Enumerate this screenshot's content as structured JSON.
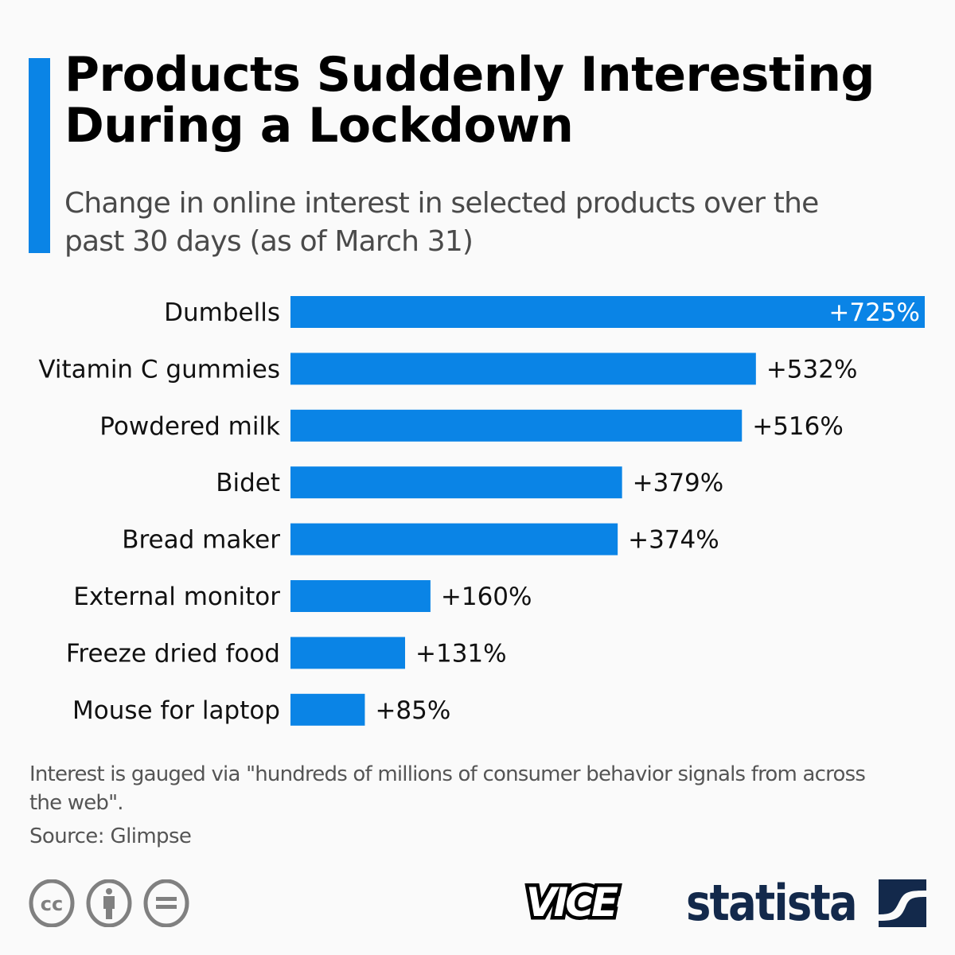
{
  "header": {
    "title": "Products Suddenly Interesting During a Lockdown",
    "subtitle": "Change in online interest in selected products over the past 30 days (as of March 31)"
  },
  "colors": {
    "accent": "#0a84e6",
    "bar": "#0a84e6",
    "title": "#000000",
    "subtitle": "#4a4a4a",
    "notes": "#555555",
    "brand_dark": "#13294b",
    "icon_light": "#7dbef3"
  },
  "chart_data": {
    "type": "bar",
    "orientation": "horizontal",
    "title": "Products Suddenly Interesting During a Lockdown",
    "subtitle": "Change in online interest in selected products over the past 30 days (as of March 31)",
    "xlabel": "",
    "ylabel": "",
    "unit": "%",
    "categories": [
      "Dumbells",
      "Vitamin C gummies",
      "Powdered milk",
      "Bidet",
      "Bread maker",
      "External monitor",
      "Freeze dried food",
      "Mouse for laptop"
    ],
    "values": [
      725,
      532,
      516,
      379,
      374,
      160,
      131,
      85
    ],
    "labels": [
      "+725%",
      "+532%",
      "+516%",
      "+379%",
      "+374%",
      "+160%",
      "+131%",
      "+85%"
    ],
    "xlim": [
      0,
      725
    ],
    "grid": false,
    "legend": "none",
    "annotations": [
      "dumbbell-illustration"
    ]
  },
  "footer": {
    "note": "Interest is gauged via \"hundreds of millions of consumer behavior signals from across the web\".",
    "source": "Source: Glimpse",
    "license_icons": [
      "cc-icon",
      "attribution-icon",
      "no-derivatives-icon"
    ],
    "partner_logo": "VICE",
    "brand": "statista"
  }
}
